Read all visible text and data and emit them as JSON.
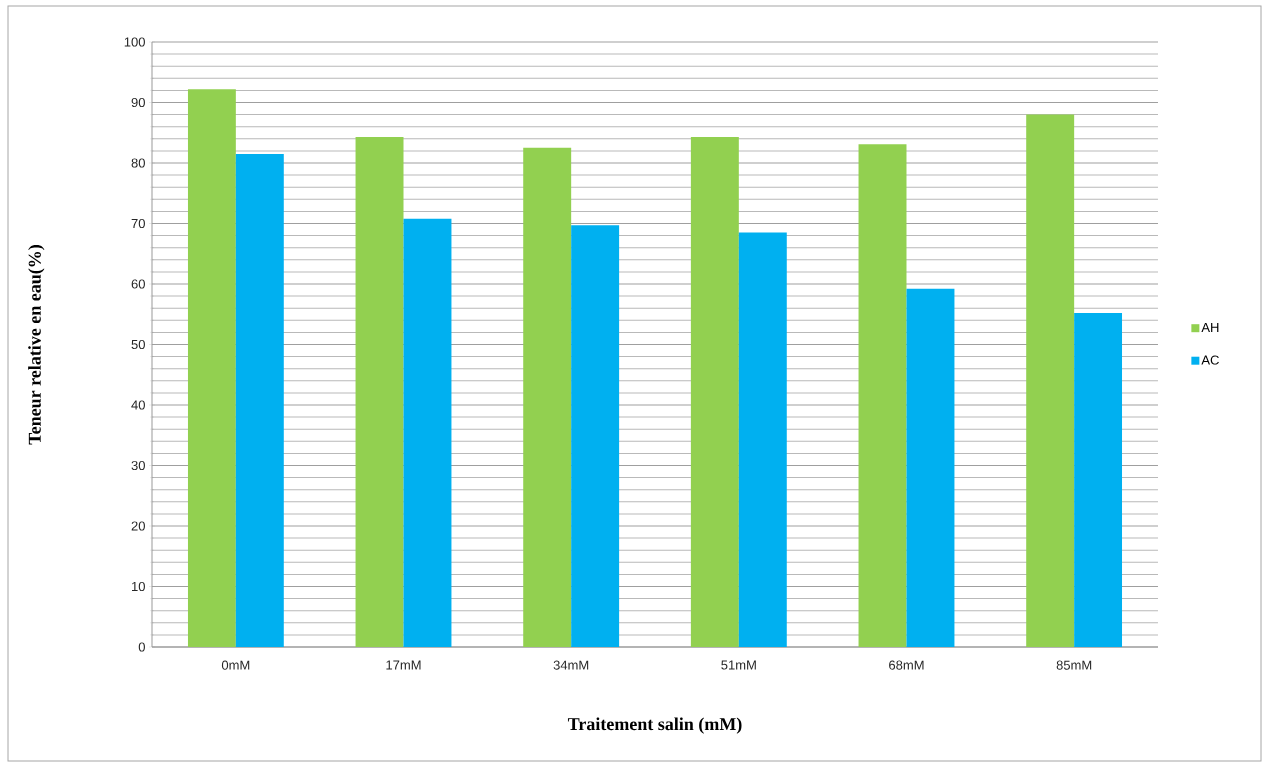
{
  "chart_data": {
    "type": "bar",
    "xlabel": "Traitement salin (mM)",
    "ylabel": "Teneur relative en eau(%)",
    "categories": [
      "0mM",
      "17mM",
      "34mM",
      "51mM",
      "68mM",
      "85mM"
    ],
    "series": [
      {
        "name": "AH",
        "color": "#92d050",
        "values": [
          92.2,
          84.3,
          82.5,
          84.3,
          83.1,
          88.0
        ]
      },
      {
        "name": "AC",
        "color": "#00b0f0",
        "values": [
          81.5,
          70.8,
          69.7,
          68.5,
          59.2,
          55.2
        ]
      }
    ],
    "ylim": [
      0,
      100
    ],
    "yticks": [
      0,
      10,
      20,
      30,
      40,
      50,
      60,
      70,
      80,
      90,
      100
    ],
    "grid": "y",
    "legend": "right"
  }
}
